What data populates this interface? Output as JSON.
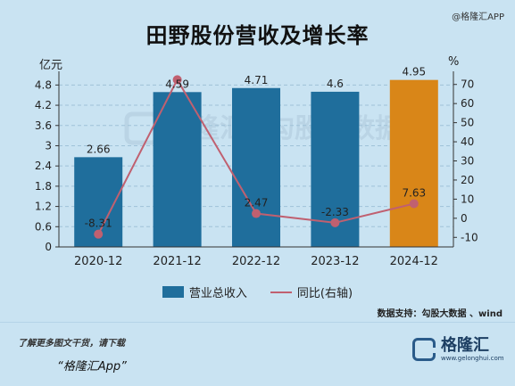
{
  "page": {
    "top_watermark": "@格隆汇APP",
    "source": "数据支持：勾股大数据 、wind",
    "promo_line1": "了解更多图文干货，请下载",
    "promo_line2": "“格隆汇App”",
    "logo_name": "格隆汇",
    "logo_url": "www.gelonghui.com"
  },
  "chart_data": {
    "type": "bar",
    "title": "田野股份营收及增长率",
    "left_unit": "亿元",
    "right_unit": "%",
    "categories": [
      "2020-12",
      "2021-12",
      "2022-12",
      "2023-12",
      "2024-12"
    ],
    "left_ylim": [
      0,
      5.1
    ],
    "left_ticks": [
      "0",
      "0.6",
      "1.2",
      "1.8",
      "2.4",
      "3",
      "3.6",
      "4.2",
      "4.8"
    ],
    "right_ylim": [
      -15,
      75
    ],
    "right_ticks": [
      "-10",
      "0",
      "10",
      "20",
      "30",
      "40",
      "50",
      "60",
      "70"
    ],
    "series": [
      {
        "name": "营业总收入",
        "type": "bar",
        "axis": "left",
        "values": [
          2.66,
          4.59,
          4.71,
          4.6,
          4.95
        ],
        "labels": [
          "2.66",
          "4.59",
          "4.71",
          "4.6",
          "4.95"
        ],
        "colors": [
          "#1f6e9c",
          "#1f6e9c",
          "#1f6e9c",
          "#1f6e9c",
          "#d98618"
        ]
      },
      {
        "name": "同比(右轴)",
        "type": "line",
        "axis": "right",
        "values": [
          -8.31,
          72.5,
          2.47,
          -2.33,
          7.63
        ],
        "labels": [
          "-8.31",
          "",
          "2.47",
          "-2.33",
          "7.63"
        ],
        "color": "#c06070"
      }
    ],
    "grid": true,
    "legend_position": "bottom"
  }
}
